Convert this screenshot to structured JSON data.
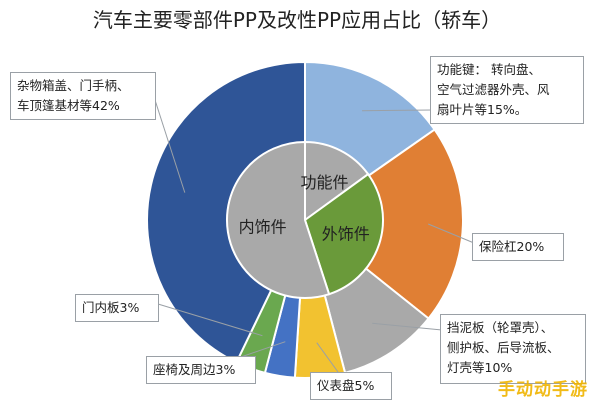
{
  "chart_data": {
    "type": "pie",
    "title": "汽车主要零部件PP及改性PP应用占比（轿车）",
    "inner_ring": {
      "slices": [
        {
          "label": "功能件",
          "value": 15,
          "color": "#a9a9a9"
        },
        {
          "label": "外饰件",
          "value": 30,
          "color": "#6a9a3a"
        },
        {
          "label": "内饰件",
          "value": 55,
          "color": "#a9a9a9"
        }
      ]
    },
    "outer_ring": {
      "slices": [
        {
          "label": "功能键： 转向盘、空气过滤器外壳、风扇叶片等15%",
          "value": 15,
          "color": "#8fb4de"
        },
        {
          "label": "保险杠20%",
          "value": 20,
          "color": "#e07f34"
        },
        {
          "label": "挡泥板（轮罩壳）、侧护板、后导流板、灯壳等10%",
          "value": 10,
          "color": "#a9a9a9"
        },
        {
          "label": "仪表盘5%",
          "value": 5,
          "color": "#f2c230"
        },
        {
          "label": "座椅及周边3%",
          "value": 3,
          "color": "#4472c4"
        },
        {
          "label": "门内板3%",
          "value": 3,
          "color": "#6aa84f"
        },
        {
          "label": "杂物箱盖、门手柄、车顶篷基材等42%",
          "value": 42,
          "color": "#2f5597"
        }
      ]
    },
    "callouts": {
      "functional": [
        "功能键： 转向盘、",
        "空气过滤器外壳、风",
        "扇叶片等15%。"
      ],
      "bumper": "保险杠20%",
      "fender": [
        "挡泥板（轮罩壳）、",
        "侧护板、后导流板、",
        "灯壳等10%"
      ],
      "dashboard": "仪表盘5%",
      "seat": "座椅及周边3%",
      "door": "门内板3%",
      "misc": [
        "杂物箱盖、门手柄、",
        "车顶篷基材等42%"
      ]
    }
  },
  "watermark": "手动动手游"
}
